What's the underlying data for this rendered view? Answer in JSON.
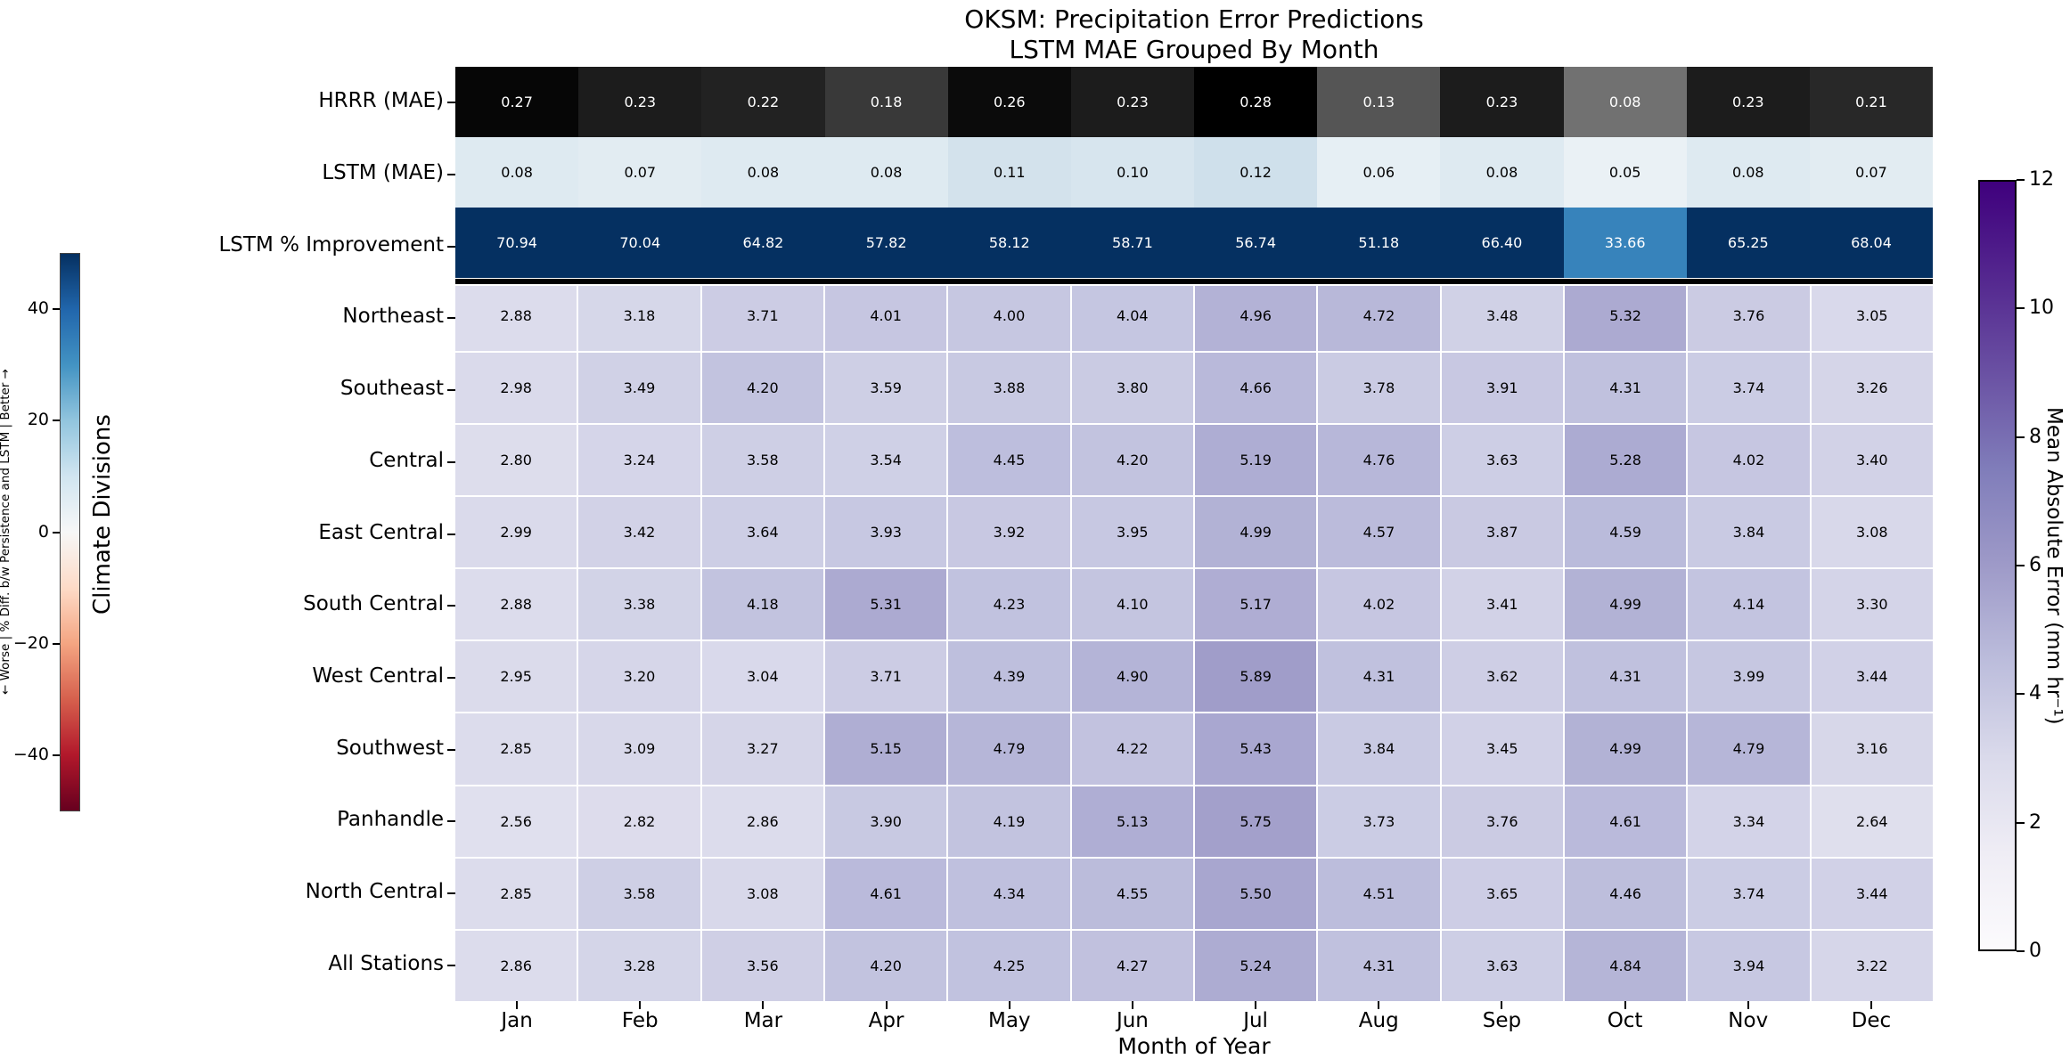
{
  "chart_data": {
    "type": "heatmap",
    "title_line1": "OKSM: Precipitation Error Predictions",
    "title_line2": "LSTM MAE Grouped By Month",
    "xlabel": "Month of Year",
    "ylabel": "Climate Divisions",
    "months": [
      "Jan",
      "Feb",
      "Mar",
      "Apr",
      "May",
      "Jun",
      "Jul",
      "Aug",
      "Sep",
      "Oct",
      "Nov",
      "Dec"
    ],
    "rows": [
      {
        "label": "HRRR (MAE)",
        "kind": "hrrr",
        "values": [
          0.27,
          0.23,
          0.22,
          0.18,
          0.26,
          0.23,
          0.28,
          0.13,
          0.23,
          0.08,
          0.23,
          0.21
        ]
      },
      {
        "label": "LSTM (MAE)",
        "kind": "lstm",
        "values": [
          0.08,
          0.07,
          0.08,
          0.08,
          0.11,
          0.1,
          0.12,
          0.06,
          0.08,
          0.05,
          0.08,
          0.07
        ]
      },
      {
        "label": "LSTM % Improvement",
        "kind": "pct",
        "values": [
          70.94,
          70.04,
          64.82,
          57.82,
          58.12,
          58.71,
          56.74,
          51.18,
          66.4,
          33.66,
          65.25,
          68.04
        ]
      },
      {
        "label": "Northeast",
        "kind": "mae",
        "values": [
          2.88,
          3.18,
          3.71,
          4.01,
          4.0,
          4.04,
          4.96,
          4.72,
          3.48,
          5.32,
          3.76,
          3.05
        ]
      },
      {
        "label": "Southeast",
        "kind": "mae",
        "values": [
          2.98,
          3.49,
          4.2,
          3.59,
          3.88,
          3.8,
          4.66,
          3.78,
          3.91,
          4.31,
          3.74,
          3.26
        ]
      },
      {
        "label": "Central",
        "kind": "mae",
        "values": [
          2.8,
          3.24,
          3.58,
          3.54,
          4.45,
          4.2,
          5.19,
          4.76,
          3.63,
          5.28,
          4.02,
          3.4
        ]
      },
      {
        "label": "East Central",
        "kind": "mae",
        "values": [
          2.99,
          3.42,
          3.64,
          3.93,
          3.92,
          3.95,
          4.99,
          4.57,
          3.87,
          4.59,
          3.84,
          3.08
        ]
      },
      {
        "label": "South Central",
        "kind": "mae",
        "values": [
          2.88,
          3.38,
          4.18,
          5.31,
          4.23,
          4.1,
          5.17,
          4.02,
          3.41,
          4.99,
          4.14,
          3.3
        ]
      },
      {
        "label": "West Central",
        "kind": "mae",
        "values": [
          2.95,
          3.2,
          3.04,
          3.71,
          4.39,
          4.9,
          5.89,
          4.31,
          3.62,
          4.31,
          3.99,
          3.44
        ]
      },
      {
        "label": "Southwest",
        "kind": "mae",
        "values": [
          2.85,
          3.09,
          3.27,
          5.15,
          4.79,
          4.22,
          5.43,
          3.84,
          3.45,
          4.99,
          4.79,
          3.16
        ]
      },
      {
        "label": "Panhandle",
        "kind": "mae",
        "values": [
          2.56,
          2.82,
          2.86,
          3.9,
          4.19,
          5.13,
          5.75,
          3.73,
          3.76,
          4.61,
          3.34,
          2.64
        ]
      },
      {
        "label": "North Central",
        "kind": "mae",
        "values": [
          2.85,
          3.58,
          3.08,
          4.61,
          4.34,
          4.55,
          5.5,
          4.51,
          3.65,
          4.46,
          3.74,
          3.44
        ]
      },
      {
        "label": "All Stations",
        "kind": "mae",
        "values": [
          2.86,
          3.28,
          3.56,
          4.2,
          4.25,
          4.27,
          5.24,
          4.31,
          3.63,
          4.84,
          3.94,
          3.22
        ]
      }
    ],
    "colorbar_right": {
      "label": "Mean Absolute Error (mm hr⁻¹)",
      "tick_values": [
        0,
        2,
        4,
        6,
        8,
        10,
        12
      ],
      "tick_labels": [
        "0",
        "2",
        "4",
        "6",
        "8",
        "10",
        "12"
      ],
      "vmin": 0,
      "vmax": 12
    },
    "colorbar_left": {
      "label": "← Worse | % Diff. b/w Persistence and LSTM | Better →",
      "tick_values": [
        40,
        20,
        0,
        -20,
        -40
      ],
      "tick_labels": [
        "40",
        "20",
        "0",
        "−20",
        "−40"
      ],
      "vmin": -50,
      "vmax": 50
    },
    "colormaps": {
      "purples": [
        "#fcfbfd",
        "#efedf5",
        "#dadaeb",
        "#bcbddc",
        "#9e9ac8",
        "#807dba",
        "#6a51a3",
        "#54278f",
        "#3f007d"
      ],
      "rdbu": [
        "#67001f",
        "#b2182b",
        "#d6604d",
        "#f4a582",
        "#fddbc7",
        "#f7f7f7",
        "#d1e5f0",
        "#92c5de",
        "#4393c3",
        "#2166ac",
        "#053061"
      ],
      "lstm_blue": [
        "#eaf1f5",
        "#cfe0eb"
      ],
      "hrrr_text": "#ffffff",
      "pct_text": "#ffffff",
      "mae_text": "#000000"
    },
    "legend_position": "right-and-left-colorbars",
    "grid": "white-gridlines-on-division-rows"
  }
}
